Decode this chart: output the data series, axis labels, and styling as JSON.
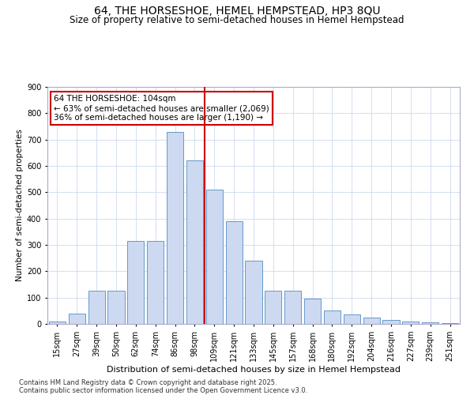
{
  "title": "64, THE HORSESHOE, HEMEL HEMPSTEAD, HP3 8QU",
  "subtitle": "Size of property relative to semi-detached houses in Hemel Hempstead",
  "xlabel": "Distribution of semi-detached houses by size in Hemel Hempstead",
  "ylabel": "Number of semi-detached properties",
  "categories": [
    "15sqm",
    "27sqm",
    "39sqm",
    "50sqm",
    "62sqm",
    "74sqm",
    "86sqm",
    "98sqm",
    "109sqm",
    "121sqm",
    "133sqm",
    "145sqm",
    "157sqm",
    "168sqm",
    "180sqm",
    "192sqm",
    "204sqm",
    "216sqm",
    "227sqm",
    "239sqm",
    "251sqm"
  ],
  "values": [
    10,
    40,
    125,
    125,
    315,
    315,
    730,
    620,
    510,
    390,
    240,
    125,
    125,
    95,
    50,
    35,
    25,
    15,
    8,
    5,
    3
  ],
  "bar_color": "#ccd9f0",
  "bar_edge_color": "#6699cc",
  "vline_index": 8,
  "vline_color": "#cc0000",
  "annotation_line1": "64 THE HORSESHOE: 104sqm",
  "annotation_line2": "← 63% of semi-detached houses are smaller (2,069)",
  "annotation_line3": "36% of semi-detached houses are larger (1,190) →",
  "annotation_box_color": "#cc0000",
  "annotation_bg": "#ffffff",
  "ylim": [
    0,
    900
  ],
  "yticks": [
    0,
    100,
    200,
    300,
    400,
    500,
    600,
    700,
    800,
    900
  ],
  "footnote": "Contains HM Land Registry data © Crown copyright and database right 2025.\nContains public sector information licensed under the Open Government Licence v3.0.",
  "bg_color": "#ffffff",
  "grid_color": "#ccd9ee",
  "title_fontsize": 10,
  "subtitle_fontsize": 8.5,
  "ylabel_fontsize": 7.5,
  "xlabel_fontsize": 8,
  "tick_fontsize": 7,
  "annotation_fontsize": 7.5,
  "footnote_fontsize": 6
}
